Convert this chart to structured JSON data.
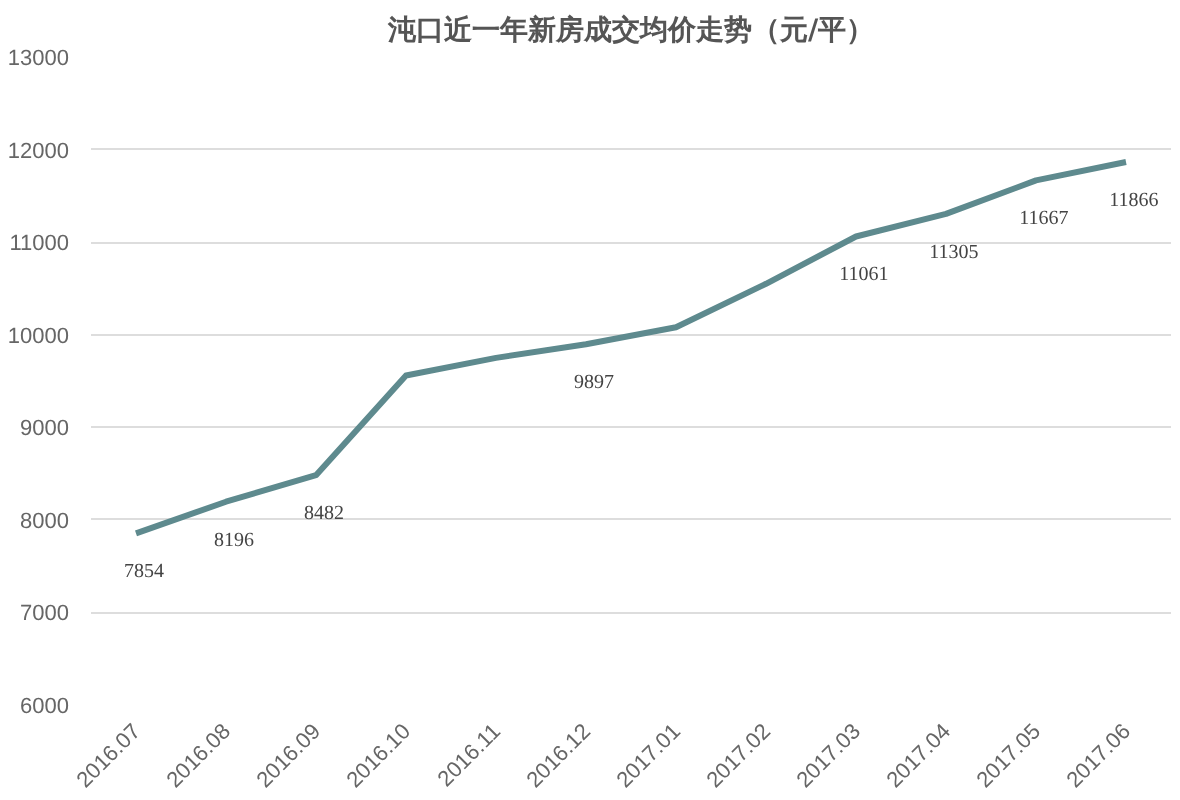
{
  "chart_data": {
    "type": "line",
    "title": "沌口近一年新房成交均价走势（元/平）",
    "categories": [
      "2016.07",
      "2016.08",
      "2016.09",
      "2016.10",
      "2016.11",
      "2016.12",
      "2017.01",
      "2017.02",
      "2017.03",
      "2017.04",
      "2017.05",
      "2017.06"
    ],
    "series": [
      {
        "color": "#5e8a8e",
        "values": [
          7854,
          8196,
          8482,
          9560,
          9750,
          9897,
          10080,
          10550,
          11061,
          11305,
          11667,
          11866
        ],
        "value_labels": [
          "7854",
          "8196",
          "8482",
          null,
          null,
          "9897",
          null,
          null,
          "11061",
          "11305",
          "11667",
          "11866"
        ]
      }
    ],
    "ylim": [
      6000,
      13000
    ],
    "yticks": [
      6000,
      7000,
      8000,
      9000,
      10000,
      11000,
      12000,
      13000
    ],
    "grid": "y",
    "marker": "none"
  }
}
